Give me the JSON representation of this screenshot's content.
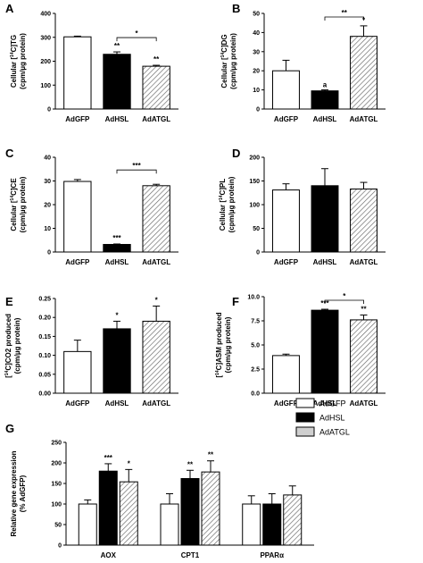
{
  "colors": {
    "black": "#000000",
    "white": "#ffffff",
    "hatch_stroke": "#666666",
    "legend_fill_3": "#cfcfcf"
  },
  "chart_data": [
    {
      "letter": "A",
      "type": "bar",
      "categories": [
        "AdGFP",
        "AdHSL",
        "AdATGL"
      ],
      "values": [
        302,
        229,
        179
      ],
      "errors": [
        3,
        10,
        4
      ],
      "ylim": [
        0,
        400
      ],
      "yticks": [
        "0",
        "100",
        "200",
        "300",
        "400"
      ],
      "ylabel": [
        "Cellular [14C]TG",
        "(cpm/µg protein)"
      ],
      "bar_labels": [
        "",
        "**",
        "**"
      ],
      "brackets": [
        {
          "from": 1,
          "to": 2,
          "label": "*"
        }
      ]
    },
    {
      "letter": "B",
      "type": "bar",
      "categories": [
        "AdGFP",
        "AdHSL",
        "AdATGL"
      ],
      "values": [
        20,
        9.5,
        38
      ],
      "errors": [
        5.5,
        0.5,
        5.5
      ],
      "ylim": [
        0,
        50
      ],
      "yticks": [
        "0",
        "10",
        "20",
        "30",
        "40",
        "50"
      ],
      "ylabel": [
        "Cellular [14C]DG",
        "(cpm/µg protein)"
      ],
      "bar_labels": [
        "",
        "a",
        "*"
      ],
      "brackets": [
        {
          "from": 1,
          "to": 2,
          "label": "**"
        }
      ]
    },
    {
      "letter": "C",
      "type": "bar",
      "categories": [
        "AdGFP",
        "AdHSL",
        "AdATGL"
      ],
      "values": [
        29.8,
        3.2,
        28
      ],
      "errors": [
        0.8,
        0.2,
        0.6
      ],
      "ylim": [
        0,
        40
      ],
      "yticks": [
        "0",
        "10",
        "20",
        "30",
        "40"
      ],
      "ylabel": [
        "Cellular [14C]CE",
        "(cpm/µg protein)"
      ],
      "bar_labels": [
        "",
        "***",
        ""
      ],
      "brackets": [
        {
          "from": 1,
          "to": 2,
          "label": "***"
        }
      ]
    },
    {
      "letter": "D",
      "type": "bar",
      "categories": [
        "AdGFP",
        "AdHSL",
        "AdATGL"
      ],
      "values": [
        131,
        140,
        133
      ],
      "errors": [
        13,
        36,
        14
      ],
      "ylim": [
        0,
        200
      ],
      "yticks": [
        "0",
        "50",
        "100",
        "150",
        "200"
      ],
      "ylabel": [
        "Cellular [14C]PL",
        "(cpm/µg protein)"
      ],
      "bar_labels": [
        "",
        "",
        ""
      ],
      "brackets": []
    },
    {
      "letter": "E",
      "type": "bar",
      "categories": [
        "AdGFP",
        "AdHSL",
        "AdATGL"
      ],
      "values": [
        0.11,
        0.17,
        0.19
      ],
      "errors": [
        0.03,
        0.02,
        0.04
      ],
      "ylim": [
        0,
        0.25
      ],
      "yticks": [
        "0.00",
        "0.05",
        "0.10",
        "0.15",
        "0.20",
        "0.25"
      ],
      "ylabel": [
        "[14C]CO2 produced",
        "(cpm/µg protein)"
      ],
      "bar_labels": [
        "",
        "*",
        "*"
      ],
      "brackets": []
    },
    {
      "letter": "F",
      "type": "bar",
      "categories": [
        "AdGFP",
        "AdHSL",
        "AdATGL"
      ],
      "values": [
        3.9,
        8.6,
        7.6
      ],
      "errors": [
        0.15,
        0.1,
        0.5
      ],
      "ylim": [
        0,
        10
      ],
      "yticks": [
        "0.0",
        "2.5",
        "5.0",
        "7.5",
        "10.0"
      ],
      "ylabel": [
        "[14C]ASM produced",
        "(cpm/µg protein)"
      ],
      "bar_labels": [
        "",
        "***",
        "**"
      ],
      "brackets": [
        {
          "from": 1,
          "to": 2,
          "label": "*"
        }
      ]
    },
    {
      "letter": "G",
      "type": "bar",
      "categories": [
        "AOX",
        "CPT1",
        "PPARα"
      ],
      "series": [
        {
          "name": "AdGFP",
          "values": [
            100,
            100,
            100
          ],
          "errors": [
            10,
            25,
            20
          ],
          "labels": [
            "",
            "",
            ""
          ]
        },
        {
          "name": "AdHSL",
          "values": [
            180,
            162,
            100
          ],
          "errors": [
            18,
            20,
            25
          ],
          "labels": [
            "***",
            "**",
            ""
          ]
        },
        {
          "name": "AdATGL",
          "values": [
            154,
            178,
            122
          ],
          "errors": [
            30,
            27,
            22
          ],
          "labels": [
            "*",
            "**",
            ""
          ]
        }
      ],
      "ylim": [
        0,
        250
      ],
      "yticks": [
        "0",
        "50",
        "100",
        "150",
        "200",
        "250"
      ],
      "ylabel": [
        "Relative gene expression",
        "(% AdGFP)"
      ],
      "legend_position": "top-right"
    }
  ]
}
